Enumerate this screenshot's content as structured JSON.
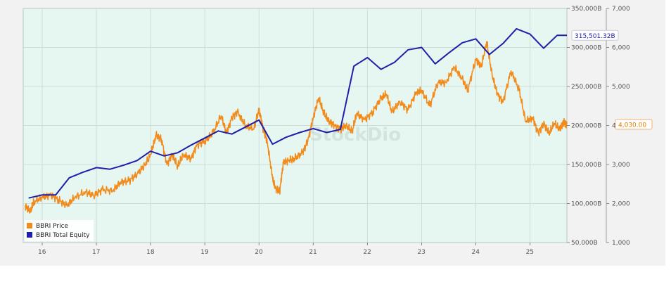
{
  "chart_data": {
    "type": "line",
    "watermark": "StockDio",
    "x": {
      "tick_labels": [
        "16",
        "17",
        "18",
        "19",
        "20",
        "21",
        "22",
        "23",
        "24",
        "25"
      ],
      "range": [
        15.65,
        25.68
      ]
    },
    "y_left": {
      "tick_labels": [
        "50,000B",
        "100,000B",
        "150,000B",
        "200,000B",
        "250,000B",
        "300,000B",
        "350,000B"
      ],
      "range": [
        50000,
        350000
      ],
      "unit": "billions"
    },
    "y_right": {
      "tick_labels": [
        "1,000",
        "2,000",
        "3,000",
        "4,000",
        "5,000",
        "6,000",
        "7,000"
      ],
      "range": [
        1000,
        7000
      ]
    },
    "legend": {
      "placement": "bottom-left",
      "entries": [
        "BBRI Price",
        "BBRI Total Equity"
      ]
    },
    "series": [
      {
        "name": "BBRI Total Equity",
        "axis": "left",
        "color": "#1f1fa8",
        "points": [
          [
            15.75,
            107000
          ],
          [
            16.0,
            111000
          ],
          [
            16.25,
            111000
          ],
          [
            16.5,
            133000
          ],
          [
            16.75,
            140000
          ],
          [
            17.0,
            146000
          ],
          [
            17.25,
            144000
          ],
          [
            17.5,
            149000
          ],
          [
            17.75,
            155000
          ],
          [
            18.0,
            167000
          ],
          [
            18.25,
            161000
          ],
          [
            18.5,
            165000
          ],
          [
            18.75,
            175000
          ],
          [
            19.0,
            184000
          ],
          [
            19.25,
            193000
          ],
          [
            19.5,
            189000
          ],
          [
            19.75,
            198000
          ],
          [
            20.0,
            207000
          ],
          [
            20.25,
            176000
          ],
          [
            20.5,
            185000
          ],
          [
            20.75,
            191000
          ],
          [
            21.0,
            196000
          ],
          [
            21.25,
            191000
          ],
          [
            21.5,
            195000
          ],
          [
            21.75,
            276000
          ],
          [
            22.0,
            287000
          ],
          [
            22.25,
            272000
          ],
          [
            22.5,
            281000
          ],
          [
            22.75,
            297000
          ],
          [
            23.0,
            300000
          ],
          [
            23.25,
            279000
          ],
          [
            23.5,
            293000
          ],
          [
            23.75,
            306000
          ],
          [
            24.0,
            311000
          ],
          [
            24.25,
            291000
          ],
          [
            24.5,
            305000
          ],
          [
            24.75,
            324000
          ],
          [
            25.0,
            317000
          ],
          [
            25.25,
            299000
          ],
          [
            25.5,
            315501.32
          ],
          [
            25.68,
            315501.32
          ]
        ]
      },
      {
        "name": "BBRI Price",
        "axis": "right",
        "color": "#f28b1b",
        "points": [
          [
            15.68,
            1950
          ],
          [
            15.78,
            1800
          ],
          [
            15.85,
            2050
          ],
          [
            16.0,
            2150
          ],
          [
            16.15,
            2220
          ],
          [
            16.3,
            2100
          ],
          [
            16.45,
            1950
          ],
          [
            16.6,
            2150
          ],
          [
            16.8,
            2300
          ],
          [
            16.95,
            2200
          ],
          [
            17.1,
            2350
          ],
          [
            17.3,
            2330
          ],
          [
            17.45,
            2550
          ],
          [
            17.6,
            2580
          ],
          [
            17.75,
            2750
          ],
          [
            17.9,
            3000
          ],
          [
            18.0,
            3250
          ],
          [
            18.1,
            3750
          ],
          [
            18.2,
            3650
          ],
          [
            18.3,
            3000
          ],
          [
            18.4,
            3250
          ],
          [
            18.5,
            2950
          ],
          [
            18.6,
            3250
          ],
          [
            18.75,
            3150
          ],
          [
            18.85,
            3500
          ],
          [
            19.0,
            3600
          ],
          [
            19.15,
            3800
          ],
          [
            19.3,
            4250
          ],
          [
            19.4,
            3800
          ],
          [
            19.5,
            4200
          ],
          [
            19.6,
            4350
          ],
          [
            19.75,
            4000
          ],
          [
            19.9,
            3900
          ],
          [
            20.0,
            4400
          ],
          [
            20.08,
            3900
          ],
          [
            20.15,
            3600
          ],
          [
            20.25,
            2650
          ],
          [
            20.3,
            2400
          ],
          [
            20.38,
            2300
          ],
          [
            20.45,
            3050
          ],
          [
            20.55,
            3100
          ],
          [
            20.65,
            3150
          ],
          [
            20.8,
            3300
          ],
          [
            20.9,
            3600
          ],
          [
            21.0,
            4200
          ],
          [
            21.1,
            4700
          ],
          [
            21.2,
            4300
          ],
          [
            21.3,
            4100
          ],
          [
            21.4,
            4000
          ],
          [
            21.5,
            3900
          ],
          [
            21.6,
            4000
          ],
          [
            21.72,
            3850
          ],
          [
            21.8,
            4300
          ],
          [
            21.95,
            4150
          ],
          [
            22.1,
            4350
          ],
          [
            22.25,
            4700
          ],
          [
            22.35,
            4800
          ],
          [
            22.45,
            4350
          ],
          [
            22.6,
            4600
          ],
          [
            22.75,
            4400
          ],
          [
            22.9,
            4850
          ],
          [
            23.0,
            4900
          ],
          [
            23.15,
            4500
          ],
          [
            23.3,
            5100
          ],
          [
            23.45,
            5100
          ],
          [
            23.6,
            5500
          ],
          [
            23.75,
            5200
          ],
          [
            23.85,
            4900
          ],
          [
            24.0,
            5700
          ],
          [
            24.1,
            5500
          ],
          [
            24.2,
            6150
          ],
          [
            24.3,
            5300
          ],
          [
            24.4,
            4800
          ],
          [
            24.5,
            4600
          ],
          [
            24.65,
            5400
          ],
          [
            24.8,
            4900
          ],
          [
            24.92,
            4100
          ],
          [
            25.05,
            4200
          ],
          [
            25.15,
            3800
          ],
          [
            25.25,
            4050
          ],
          [
            25.35,
            3800
          ],
          [
            25.45,
            4050
          ],
          [
            25.55,
            3900
          ],
          [
            25.62,
            4100
          ],
          [
            25.68,
            4030
          ]
        ]
      }
    ],
    "last_value_tags": [
      {
        "series": "BBRI Total Equity",
        "label": "315,501.32B",
        "color": "#1f1fa8",
        "value": 315501.32
      },
      {
        "series": "BBRI Price",
        "label": "4,030.00",
        "color": "#e07b00",
        "value": 4030
      }
    ],
    "grid": true,
    "background_color": "#e6f7f1"
  }
}
